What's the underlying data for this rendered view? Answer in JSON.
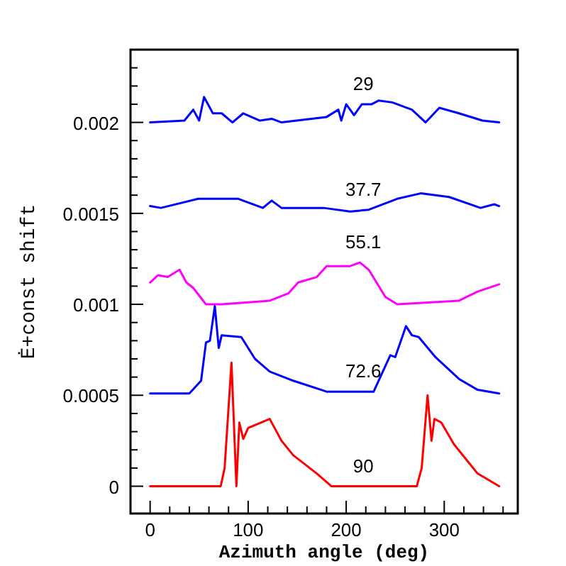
{
  "chart_data": {
    "type": "line",
    "xlabel": "Azimuth angle (deg)",
    "ylabel": "Ė+const shift",
    "xlim": [
      -20,
      375
    ],
    "ylim": [
      -0.00015,
      0.0024
    ],
    "xticks": [
      0,
      {
        "value": 20,
        "label": null
      },
      {
        "value": 40,
        "label": null
      },
      {
        "value": 60,
        "label": null
      },
      {
        "value": 80,
        "label": null
      },
      100,
      {
        "value": 120,
        "label": null
      },
      {
        "value": 140,
        "label": null
      },
      {
        "value": 160,
        "label": null
      },
      {
        "value": 180,
        "label": null
      },
      200,
      {
        "value": 220,
        "label": null
      },
      {
        "value": 240,
        "label": null
      },
      {
        "value": 260,
        "label": null
      },
      {
        "value": 280,
        "label": null
      },
      300,
      {
        "value": 320,
        "label": null
      },
      {
        "value": 340,
        "label": null
      },
      {
        "value": 360,
        "label": null
      }
    ],
    "yticks": [
      0,
      {
        "value": 0.0001,
        "label": null
      },
      {
        "value": 0.0002,
        "label": null
      },
      {
        "value": 0.0003,
        "label": null
      },
      {
        "value": 0.0004,
        "label": null
      },
      0.0005,
      {
        "value": 0.0006,
        "label": null
      },
      {
        "value": 0.0007,
        "label": null
      },
      {
        "value": 0.0008,
        "label": null
      },
      {
        "value": 0.0009,
        "label": null
      },
      0.001,
      {
        "value": 0.0011,
        "label": null
      },
      {
        "value": 0.0012,
        "label": null
      },
      {
        "value": 0.0013,
        "label": null
      },
      {
        "value": 0.0014,
        "label": null
      },
      0.0015,
      {
        "value": 0.0016,
        "label": null
      },
      {
        "value": 0.0017,
        "label": null
      },
      {
        "value": 0.0018,
        "label": null
      },
      {
        "value": 0.0019,
        "label": null
      },
      0.002,
      {
        "value": 0.0021,
        "label": null
      },
      {
        "value": 0.0022,
        "label": null
      },
      {
        "value": 0.0023,
        "label": null
      }
    ],
    "grid": false,
    "marker": "none",
    "line_style": "solid",
    "series": [
      {
        "name": "29",
        "color": "#0000ff",
        "x": [
          0,
          35,
          44,
          50,
          55,
          64,
          73,
          84,
          95,
          112,
          124,
          134,
          180,
          192,
          195,
          200,
          208,
          216,
          226,
          233,
          247,
          267,
          281,
          295,
          315,
          339,
          356
        ],
        "values": [
          0.002,
          0.00201,
          0.00207,
          0.00201,
          0.00214,
          0.00205,
          0.00205,
          0.002,
          0.00205,
          0.00201,
          0.00202,
          0.002,
          0.00203,
          0.00207,
          0.00201,
          0.0021,
          0.00204,
          0.0021,
          0.0021,
          0.00212,
          0.00211,
          0.00207,
          0.002,
          0.00208,
          0.00205,
          0.00201,
          0.002
        ]
      },
      {
        "name": "37.7",
        "color": "#0000ff",
        "x": [
          0,
          11,
          49,
          90,
          115,
          124,
          134,
          177,
          204,
          223,
          252,
          276,
          305,
          337,
          351,
          356
        ],
        "values": [
          0.00154,
          0.00153,
          0.00158,
          0.00158,
          0.00153,
          0.00157,
          0.00153,
          0.00153,
          0.00151,
          0.00152,
          0.00158,
          0.00161,
          0.00159,
          0.00153,
          0.00155,
          0.00154
        ]
      },
      {
        "name": "55.1",
        "color": "#ff00ff",
        "x": [
          0,
          8,
          18,
          30,
          37,
          44,
          57,
          73,
          122,
          141,
          151,
          170,
          180,
          204,
          214,
          223,
          240,
          252,
          315,
          334,
          356
        ],
        "values": [
          0.00112,
          0.00116,
          0.00115,
          0.00119,
          0.00112,
          0.00109,
          0.001,
          0.001,
          0.00102,
          0.00106,
          0.00112,
          0.00115,
          0.00121,
          0.00121,
          0.00123,
          0.00119,
          0.00104,
          0.001,
          0.00102,
          0.00107,
          0.00111
        ]
      },
      {
        "name": "72.6",
        "color": "#0000ff",
        "x": [
          0,
          40,
          52,
          57,
          61,
          66,
          70,
          73,
          93,
          107,
          122,
          146,
          180,
          214,
          228,
          245,
          250,
          261,
          267,
          274,
          291,
          315,
          334,
          356
        ],
        "values": [
          0.00051,
          0.00051,
          0.00058,
          0.00079,
          0.0008,
          0.00099,
          0.00076,
          0.00083,
          0.00082,
          0.0007,
          0.00063,
          0.00058,
          0.00052,
          0.00052,
          0.00052,
          0.00072,
          0.00071,
          0.00088,
          0.00083,
          0.00082,
          0.00071,
          0.00059,
          0.00053,
          0.00051
        ]
      },
      {
        "name": "90",
        "color": "#ff0000",
        "x": [
          0,
          72,
          76,
          83,
          88,
          91,
          95,
          100,
          122,
          134,
          146,
          170,
          185,
          272,
          277,
          283,
          287,
          290,
          297,
          310,
          334,
          356
        ],
        "values": [
          0,
          0,
          0.0001,
          0.00068,
          0,
          0.00035,
          0.00026,
          0.00032,
          0.00037,
          0.00025,
          0.00017,
          7e-05,
          0,
          0,
          0.0001,
          0.0005,
          0.00025,
          0.00037,
          0.00035,
          0.00023,
          7e-05,
          0
        ]
      }
    ]
  }
}
